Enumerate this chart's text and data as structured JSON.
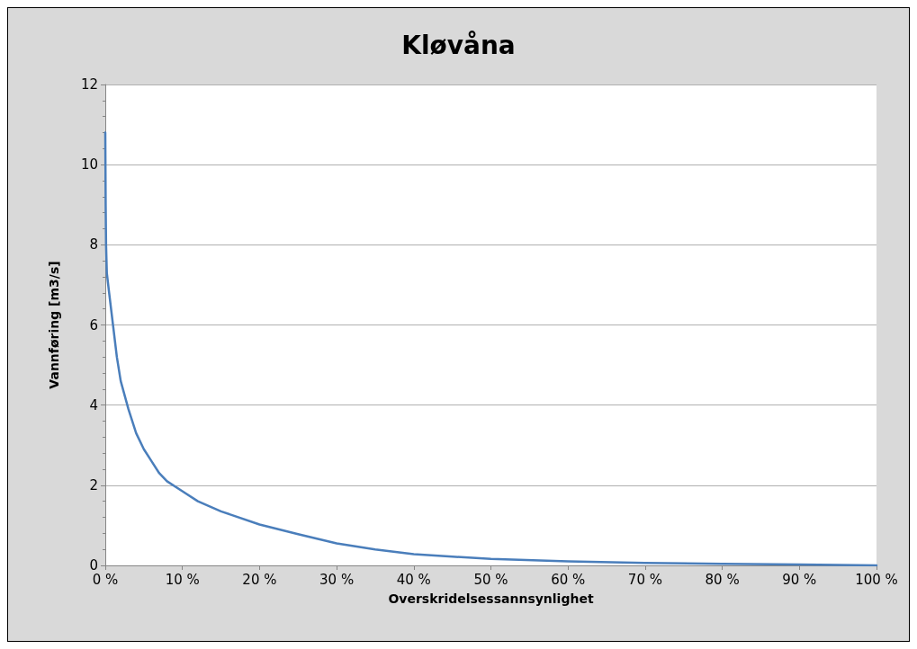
{
  "chart_data": {
    "type": "line",
    "title": "Kløvåna",
    "xlabel": "Overskridelsessannsynlighet",
    "ylabel": "Vannføring [m3/s]",
    "x": [
      0,
      0.05,
      0.1,
      0.2,
      0.5,
      1,
      1.5,
      2,
      3,
      4,
      5,
      6,
      7,
      8,
      10,
      12,
      15,
      20,
      25,
      30,
      35,
      40,
      45,
      50,
      60,
      70,
      80,
      90,
      100
    ],
    "series": [
      {
        "color": "#4a7ebb",
        "values": [
          10.8,
          9.0,
          8.0,
          7.3,
          6.8,
          6.0,
          5.2,
          4.6,
          3.9,
          3.3,
          2.9,
          2.6,
          2.3,
          2.1,
          1.85,
          1.6,
          1.35,
          1.02,
          0.78,
          0.55,
          0.4,
          0.28,
          0.22,
          0.16,
          0.1,
          0.06,
          0.04,
          0.02,
          0.0
        ]
      }
    ],
    "xlim": [
      0,
      100
    ],
    "xticks": [
      {
        "value": 0,
        "label": "0 %"
      },
      {
        "value": 10,
        "label": "10 %"
      },
      {
        "value": 20,
        "label": "20 %"
      },
      {
        "value": 30,
        "label": "30 %"
      },
      {
        "value": 40,
        "label": "40 %"
      },
      {
        "value": 50,
        "label": "50 %"
      },
      {
        "value": 60,
        "label": "60 %"
      },
      {
        "value": 70,
        "label": "70 %"
      },
      {
        "value": 80,
        "label": "80 %"
      },
      {
        "value": 90,
        "label": "90 %"
      },
      {
        "value": 100,
        "label": "100 %"
      }
    ],
    "ylim": [
      0,
      12
    ],
    "yticks": [
      0,
      2,
      4,
      6,
      8,
      10,
      12
    ],
    "grid": "y",
    "marker": "none",
    "line_style": "solid"
  }
}
